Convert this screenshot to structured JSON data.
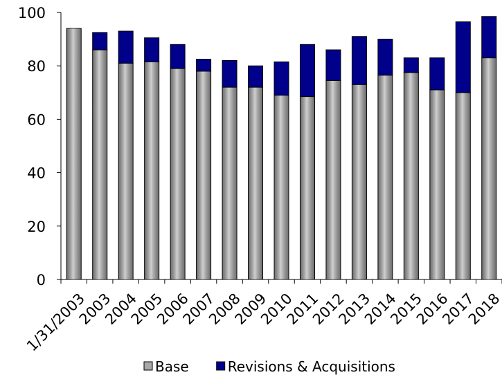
{
  "chart_data": {
    "type": "stacked_bar",
    "categories": [
      "1/31/2003",
      "2003",
      "2004",
      "2005",
      "2006",
      "2007",
      "2008",
      "2009",
      "2010",
      "2011",
      "2012",
      "2013",
      "2014",
      "2015",
      "2016",
      "2017",
      "2018"
    ],
    "series": [
      {
        "name": "Base",
        "color": "#a8a8a8",
        "values": [
          94,
          86,
          81,
          81.5,
          79,
          78,
          72,
          72,
          69,
          68.5,
          74.5,
          73,
          76.5,
          77.5,
          71,
          70,
          83
        ]
      },
      {
        "name": "Revisions & Acquisitions",
        "color": "#00008b",
        "values": [
          0,
          6.5,
          12,
          9,
          9,
          4.5,
          10,
          8,
          12.5,
          19.5,
          11.5,
          18,
          13.5,
          5.5,
          12,
          26.5,
          15.5
        ]
      }
    ],
    "ylim": [
      0,
      100
    ],
    "yticks": [
      0,
      20,
      40,
      60,
      80,
      100
    ],
    "legend": "bottom"
  }
}
